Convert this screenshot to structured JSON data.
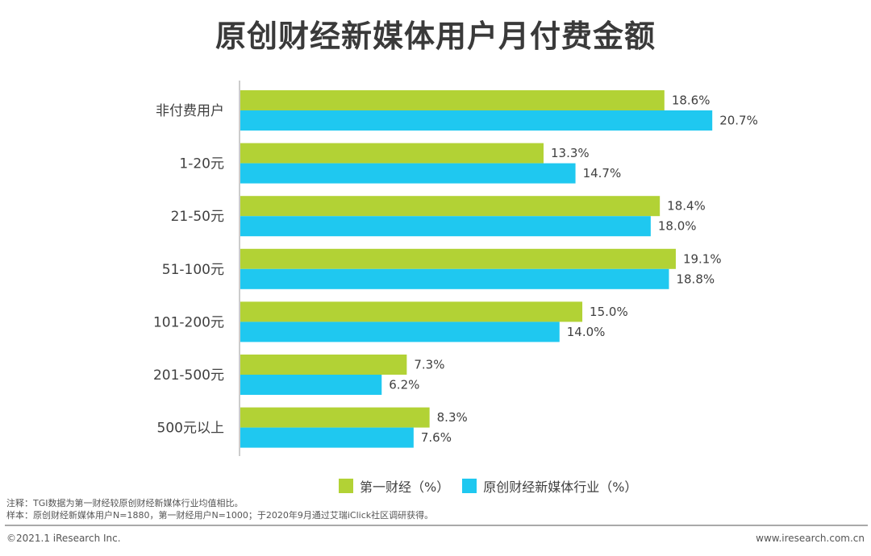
{
  "title": "原创财经新媒体用户月付费金额",
  "chart_data": {
    "type": "bar",
    "orientation": "horizontal",
    "title": "原创财经新媒体用户月付费金额",
    "categories": [
      "非付费用户",
      "1-20元",
      "21-50元",
      "51-100元",
      "101-200元",
      "201-500元",
      "500元以上"
    ],
    "series": [
      {
        "name": "第一财经（%）",
        "color": "#b2d235",
        "values": [
          18.6,
          13.3,
          18.4,
          19.1,
          15.0,
          7.3,
          8.3
        ],
        "labels": [
          "18.6%",
          "13.3%",
          "18.4%",
          "19.1%",
          "15.0%",
          "7.3%",
          "8.3%"
        ]
      },
      {
        "name": "原创财经新媒体行业（%）",
        "color": "#1fc8f0",
        "values": [
          20.7,
          14.7,
          18.0,
          18.8,
          14.0,
          6.2,
          7.6
        ],
        "labels": [
          "20.7%",
          "14.7%",
          "18.0%",
          "18.8%",
          "14.0%",
          "6.2%",
          "7.6%"
        ]
      }
    ],
    "xlabel": "",
    "ylabel": "",
    "xlim": [
      0,
      22
    ],
    "grid": false,
    "legend": "bottom-center"
  },
  "notes": [
    "注释：TGI数据为第一财经较原创财经新媒体行业均值相比。",
    "样本：原创财经新媒体用户N=1880，第一财经用户N=1000；于2020年9月通过艾瑞iClick社区调研获得。"
  ],
  "footer": {
    "copyright": "©2021.1 iResearch Inc.",
    "website": "www.iresearch.com.cn"
  }
}
